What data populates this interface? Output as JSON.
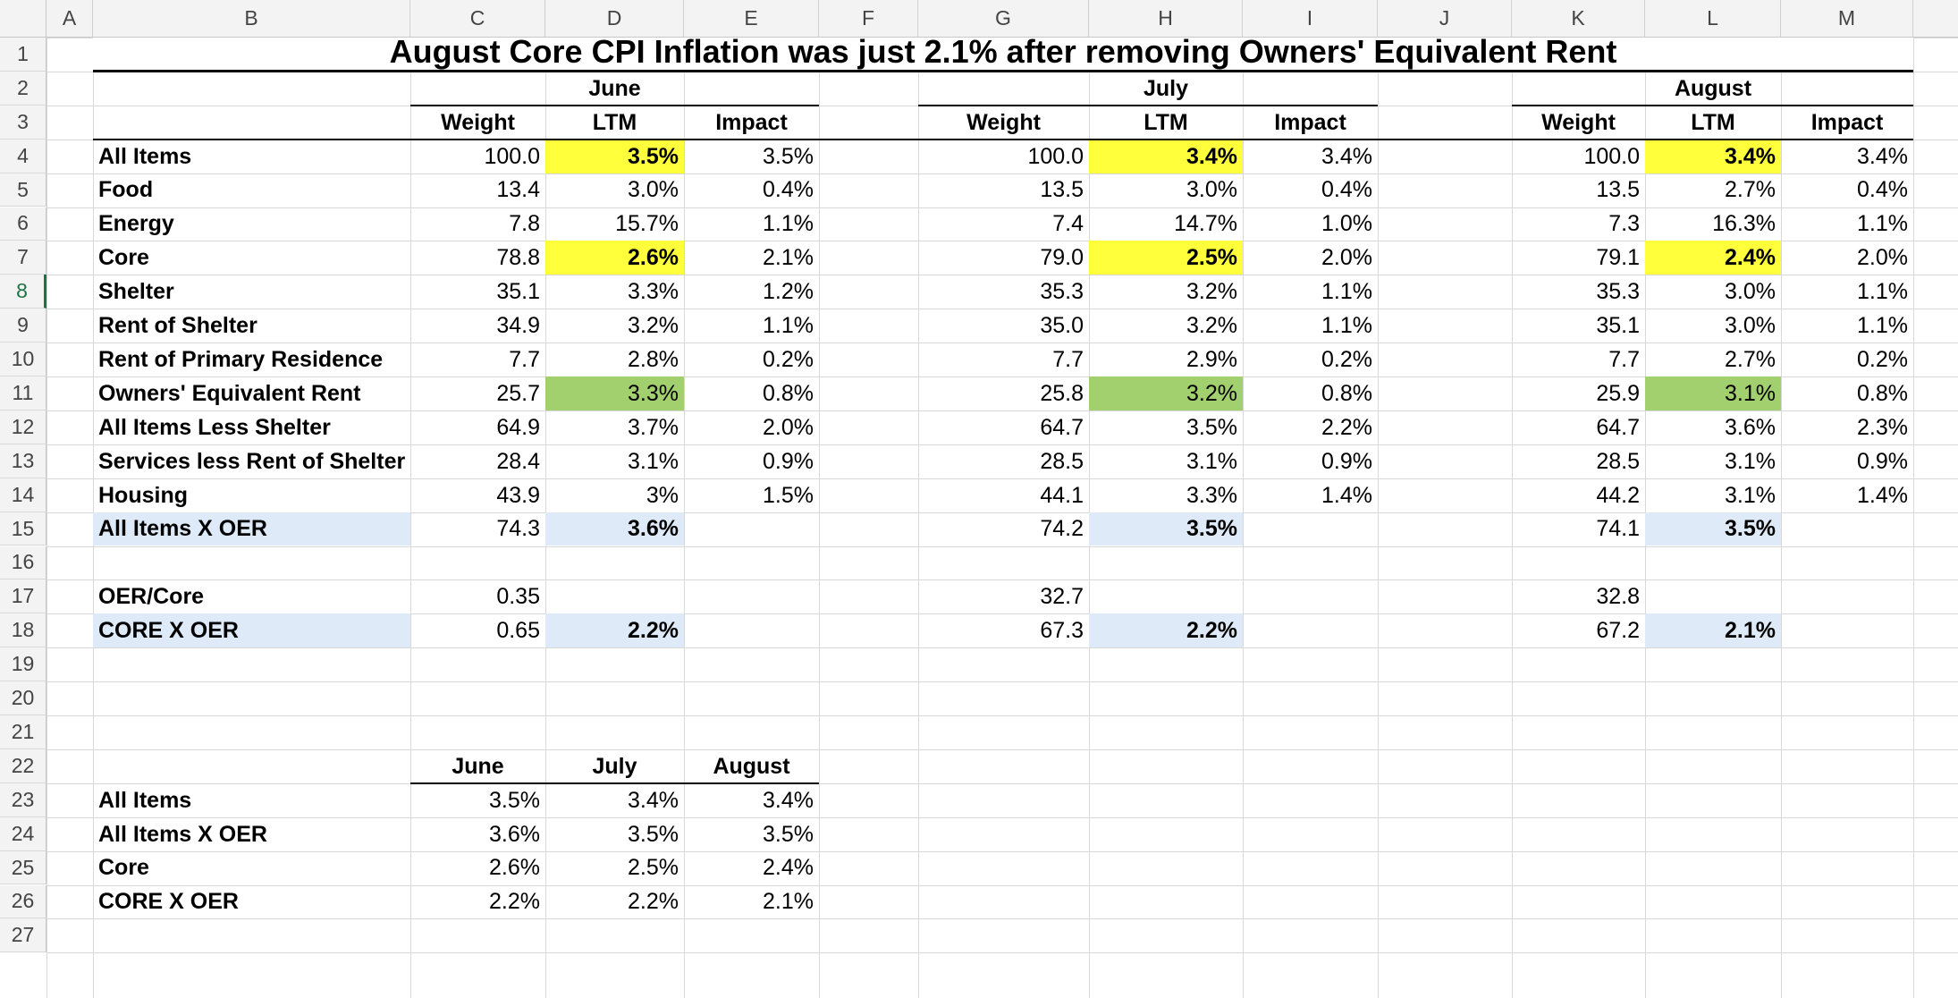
{
  "columns": [
    "A",
    "B",
    "C",
    "D",
    "E",
    "F",
    "G",
    "H",
    "I",
    "J",
    "K",
    "L",
    "M"
  ],
  "rows": [
    1,
    2,
    3,
    4,
    5,
    6,
    7,
    8,
    9,
    10,
    11,
    12,
    13,
    14,
    15,
    16,
    17,
    18,
    19,
    20,
    21,
    22,
    23,
    24,
    25,
    26,
    27
  ],
  "selected_row": 8,
  "colors": {
    "yellow": "#ffff3b",
    "green": "#a3d06f",
    "blue": "#deeaf7",
    "header_bg": "#f3f3f3",
    "gridline": "#d8d8d8",
    "selected_row_header": "#1e7145"
  },
  "title": "August Core CPI Inflation was just 2.1% after removing Owners' Equivalent Rent",
  "months": [
    "June",
    "July",
    "August"
  ],
  "subheaders": [
    "Weight",
    "LTM",
    "Impact"
  ],
  "labels": [
    "All Items",
    "Food",
    "Energy",
    "Core",
    "Shelter",
    "Rent of Shelter",
    "Rent of Primary Residence",
    "Owners' Equivalent Rent",
    "All Items Less Shelter",
    "Services less Rent of Shelter",
    "Housing",
    "All Items X OER"
  ],
  "data": {
    "june": [
      [
        "100.0",
        "3.5%",
        "3.5%"
      ],
      [
        "13.4",
        "3.0%",
        "0.4%"
      ],
      [
        "7.8",
        "15.7%",
        "1.1%"
      ],
      [
        "78.8",
        "2.6%",
        "2.1%"
      ],
      [
        "35.1",
        "3.3%",
        "1.2%"
      ],
      [
        "34.9",
        "3.2%",
        "1.1%"
      ],
      [
        "7.7",
        "2.8%",
        "0.2%"
      ],
      [
        "25.7",
        "3.3%",
        "0.8%"
      ],
      [
        "64.9",
        "3.7%",
        "2.0%"
      ],
      [
        "28.4",
        "3.1%",
        "0.9%"
      ],
      [
        "43.9",
        "3%",
        "1.5%"
      ],
      [
        "74.3",
        "3.6%",
        ""
      ]
    ],
    "july": [
      [
        "100.0",
        "3.4%",
        "3.4%"
      ],
      [
        "13.5",
        "3.0%",
        "0.4%"
      ],
      [
        "7.4",
        "14.7%",
        "1.0%"
      ],
      [
        "79.0",
        "2.5%",
        "2.0%"
      ],
      [
        "35.3",
        "3.2%",
        "1.1%"
      ],
      [
        "35.0",
        "3.2%",
        "1.1%"
      ],
      [
        "7.7",
        "2.9%",
        "0.2%"
      ],
      [
        "25.8",
        "3.2%",
        "0.8%"
      ],
      [
        "64.7",
        "3.5%",
        "2.2%"
      ],
      [
        "28.5",
        "3.1%",
        "0.9%"
      ],
      [
        "44.1",
        "3.3%",
        "1.4%"
      ],
      [
        "74.2",
        "3.5%",
        ""
      ]
    ],
    "august": [
      [
        "100.0",
        "3.4%",
        "3.4%"
      ],
      [
        "13.5",
        "2.7%",
        "0.4%"
      ],
      [
        "7.3",
        "16.3%",
        "1.1%"
      ],
      [
        "79.1",
        "2.4%",
        "2.0%"
      ],
      [
        "35.3",
        "3.0%",
        "1.1%"
      ],
      [
        "35.1",
        "3.0%",
        "1.1%"
      ],
      [
        "7.7",
        "2.7%",
        "0.2%"
      ],
      [
        "25.9",
        "3.1%",
        "0.8%"
      ],
      [
        "64.7",
        "3.6%",
        "2.3%"
      ],
      [
        "28.5",
        "3.1%",
        "0.9%"
      ],
      [
        "44.2",
        "3.1%",
        "1.4%"
      ],
      [
        "74.1",
        "3.5%",
        ""
      ]
    ]
  },
  "extra": {
    "oer_core_label": "OER/Core",
    "core_x_oer_label": "CORE X OER",
    "oer_core": [
      "0.35",
      "32.7",
      "32.8"
    ],
    "core_x_oer": [
      [
        "0.65",
        "2.2%"
      ],
      [
        "67.3",
        "2.2%"
      ],
      [
        "67.2",
        "2.1%"
      ]
    ]
  },
  "summary": {
    "headers": [
      "June",
      "July",
      "August"
    ],
    "rows": [
      {
        "label": "All Items",
        "values": [
          "3.5%",
          "3.4%",
          "3.4%"
        ]
      },
      {
        "label": "All Items X OER",
        "values": [
          "3.6%",
          "3.5%",
          "3.5%"
        ]
      },
      {
        "label": "Core",
        "values": [
          "2.6%",
          "2.5%",
          "2.4%"
        ]
      },
      {
        "label": "CORE X OER",
        "values": [
          "2.2%",
          "2.2%",
          "2.1%"
        ]
      }
    ]
  }
}
